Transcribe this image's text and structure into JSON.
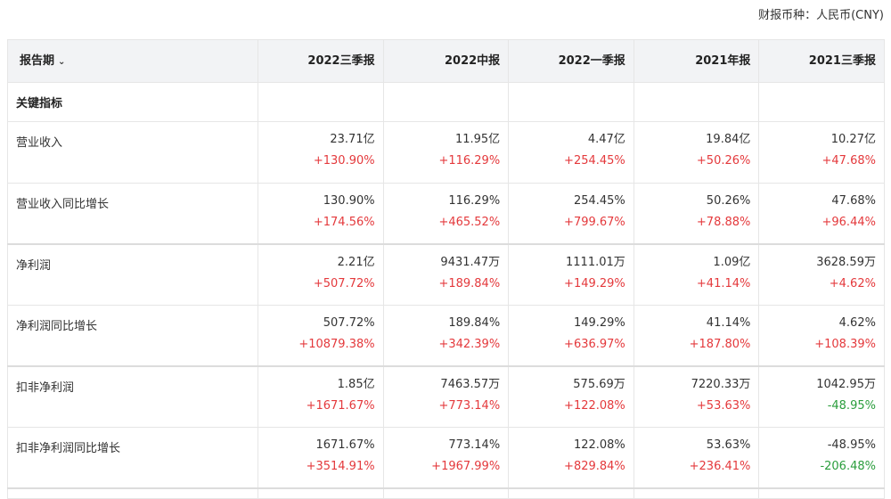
{
  "currency": {
    "label": "财报币种：",
    "value": "人民币(CNY)"
  },
  "colors": {
    "up": "#e4393c",
    "down": "#2a9d3c",
    "header_bg": "#f2f3f5"
  },
  "header": {
    "period_label": "报告期",
    "period_icon": "chevron-down-icon",
    "columns": [
      "2022三季报",
      "2022中报",
      "2022一季报",
      "2021年报",
      "2021三季报"
    ]
  },
  "section": {
    "label": "关键指标"
  },
  "rows": [
    {
      "label": "营业收入",
      "values": [
        "23.71亿",
        "11.95亿",
        "4.47亿",
        "19.84亿",
        "10.27亿"
      ],
      "changes": [
        "+130.90%",
        "+116.29%",
        "+254.45%",
        "+50.26%",
        "+47.68%"
      ],
      "dirs": [
        "up",
        "up",
        "up",
        "up",
        "up"
      ]
    },
    {
      "label": "营业收入同比增长",
      "values": [
        "130.90%",
        "116.29%",
        "254.45%",
        "50.26%",
        "47.68%"
      ],
      "changes": [
        "+174.56%",
        "+465.52%",
        "+799.67%",
        "+78.88%",
        "+96.44%"
      ],
      "dirs": [
        "up",
        "up",
        "up",
        "up",
        "up"
      ]
    },
    {
      "label": "净利润",
      "values": [
        "2.21亿",
        "9431.47万",
        "1111.01万",
        "1.09亿",
        "3628.59万"
      ],
      "changes": [
        "+507.72%",
        "+189.84%",
        "+149.29%",
        "+41.14%",
        "+4.62%"
      ],
      "dirs": [
        "up",
        "up",
        "up",
        "up",
        "up"
      ]
    },
    {
      "label": "净利润同比增长",
      "values": [
        "507.72%",
        "189.84%",
        "149.29%",
        "41.14%",
        "4.62%"
      ],
      "changes": [
        "+10879.38%",
        "+342.39%",
        "+636.97%",
        "+187.80%",
        "+108.39%"
      ],
      "dirs": [
        "up",
        "up",
        "up",
        "up",
        "up"
      ]
    },
    {
      "label": "扣非净利润",
      "values": [
        "1.85亿",
        "7463.57万",
        "575.69万",
        "7220.33万",
        "1042.95万"
      ],
      "changes": [
        "+1671.67%",
        "+773.14%",
        "+122.08%",
        "+53.63%",
        "-48.95%"
      ],
      "dirs": [
        "up",
        "up",
        "up",
        "up",
        "down"
      ]
    },
    {
      "label": "扣非净利润同比增长",
      "values": [
        "1671.67%",
        "773.14%",
        "122.08%",
        "53.63%",
        "-48.95%"
      ],
      "changes": [
        "+3514.91%",
        "+1967.99%",
        "+829.84%",
        "+236.41%",
        "-206.48%"
      ],
      "dirs": [
        "up",
        "up",
        "up",
        "up",
        "down"
      ]
    }
  ]
}
